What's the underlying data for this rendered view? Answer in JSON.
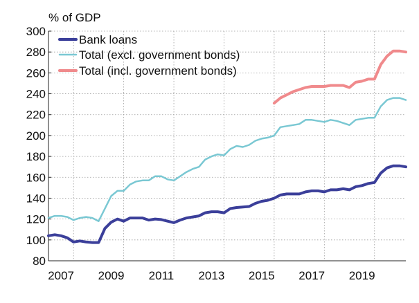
{
  "chart_data": {
    "type": "line",
    "y_unit_label": "% of GDP",
    "ylim": [
      80,
      300
    ],
    "y_ticks": [
      80,
      100,
      120,
      140,
      160,
      180,
      200,
      220,
      240,
      260,
      280,
      300
    ],
    "y_tick_labels": [
      "80",
      "100",
      "120",
      "140",
      "160",
      "180",
      "200",
      "220",
      "240",
      "260",
      "280",
      "300"
    ],
    "xlim": [
      2006.75,
      2021.0
    ],
    "x_ticks": [
      2007,
      2009,
      2011,
      2013,
      2015,
      2017,
      2019
    ],
    "x_tick_labels": [
      "2007",
      "2009",
      "2011",
      "2013",
      "2015",
      "2017",
      "2019"
    ],
    "x_grid_lines": [
      2007.75,
      2009.75,
      2011.75,
      2013.75,
      2015.75,
      2017.75,
      2019.75
    ],
    "grid": "horizontal and vertical dotted",
    "legend_position": "top-left",
    "series": [
      {
        "name": "Bank loans",
        "color": "#3b3f9a",
        "x": [
          2006.75,
          2007.0,
          2007.25,
          2007.5,
          2007.75,
          2008.0,
          2008.25,
          2008.5,
          2008.75,
          2009.0,
          2009.25,
          2009.5,
          2009.75,
          2010.0,
          2010.25,
          2010.5,
          2010.75,
          2011.0,
          2011.25,
          2011.5,
          2011.75,
          2012.0,
          2012.25,
          2012.5,
          2012.75,
          2013.0,
          2013.25,
          2013.5,
          2013.75,
          2014.0,
          2014.25,
          2014.5,
          2014.75,
          2015.0,
          2015.25,
          2015.5,
          2015.75,
          2016.0,
          2016.25,
          2016.5,
          2016.75,
          2017.0,
          2017.25,
          2017.5,
          2017.75,
          2018.0,
          2018.25,
          2018.5,
          2018.75,
          2019.0,
          2019.25,
          2019.5,
          2019.75,
          2020.0,
          2020.25,
          2020.5,
          2020.75,
          2021.0
        ],
        "values": [
          104,
          105,
          104,
          102,
          98,
          99,
          98,
          97.5,
          97.5,
          111,
          117,
          120,
          118,
          121,
          121,
          121,
          119,
          120,
          119.5,
          118,
          116.5,
          119,
          121,
          122,
          123,
          126,
          127,
          127,
          126,
          130,
          131,
          131.5,
          132,
          135,
          137,
          138,
          140,
          143,
          144,
          144,
          144,
          146,
          147,
          147,
          146,
          148,
          148,
          149,
          148,
          151,
          152,
          154,
          155,
          164,
          169,
          171,
          171,
          170
        ]
      },
      {
        "name": "Total (excl. government bonds)",
        "color": "#7ac8d3",
        "x": [
          2006.75,
          2007.0,
          2007.25,
          2007.5,
          2007.75,
          2008.0,
          2008.25,
          2008.5,
          2008.75,
          2009.0,
          2009.25,
          2009.5,
          2009.75,
          2010.0,
          2010.25,
          2010.5,
          2010.75,
          2011.0,
          2011.25,
          2011.5,
          2011.75,
          2012.0,
          2012.25,
          2012.5,
          2012.75,
          2013.0,
          2013.25,
          2013.5,
          2013.75,
          2014.0,
          2014.25,
          2014.5,
          2014.75,
          2015.0,
          2015.25,
          2015.5,
          2015.75,
          2016.0,
          2016.25,
          2016.5,
          2016.75,
          2017.0,
          2017.25,
          2017.5,
          2017.75,
          2018.0,
          2018.25,
          2018.5,
          2018.75,
          2019.0,
          2019.25,
          2019.5,
          2019.75,
          2020.0,
          2020.25,
          2020.5,
          2020.75,
          2021.0
        ],
        "values": [
          121,
          123,
          123,
          122,
          119,
          121,
          122,
          121,
          118,
          130,
          142,
          147,
          147,
          153,
          156,
          157,
          157,
          161,
          161,
          158,
          157,
          161,
          165,
          168,
          170,
          177,
          180,
          182,
          181,
          187,
          190,
          189,
          191,
          195,
          197,
          198,
          200,
          208,
          209,
          210,
          211,
          215,
          215,
          214,
          213,
          215,
          214,
          212,
          210,
          215,
          216,
          217,
          217,
          228,
          234,
          236,
          236,
          234
        ]
      },
      {
        "name": "Total (incl. government bonds)",
        "color": "#f08a8c",
        "x": [
          2015.75,
          2016.0,
          2016.25,
          2016.5,
          2016.75,
          2017.0,
          2017.25,
          2017.5,
          2017.75,
          2018.0,
          2018.25,
          2018.5,
          2018.75,
          2019.0,
          2019.25,
          2019.5,
          2019.75,
          2020.0,
          2020.25,
          2020.5,
          2020.75,
          2021.0
        ],
        "values": [
          231,
          236,
          239,
          242,
          244,
          246,
          247,
          247,
          247,
          248,
          248,
          248,
          246,
          251,
          252,
          254,
          254,
          268,
          276,
          281,
          281,
          280
        ]
      }
    ]
  }
}
